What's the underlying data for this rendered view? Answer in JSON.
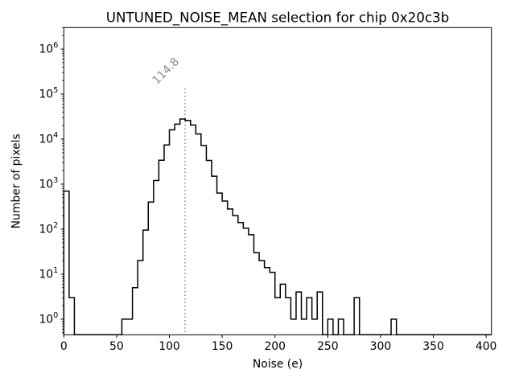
{
  "figure": {
    "title": "UNTUNED_NOISE_MEAN selection for chip 0x20c3b",
    "background_color": "#ffffff"
  },
  "chart_data": {
    "type": "bar",
    "subtype": "step-histogram",
    "title": "UNTUNED_NOISE_MEAN selection for chip 0x20c3b",
    "xlabel": "Noise (e)",
    "ylabel": "Number of pixels",
    "yscale": "log",
    "xlim": [
      0,
      405
    ],
    "ylim": [
      0.45,
      3000000
    ],
    "grid": false,
    "legend": null,
    "bin_start": 0,
    "bin_width": 5,
    "counts": [
      700,
      3,
      0,
      0,
      0,
      0,
      0,
      0,
      0,
      0,
      0,
      1,
      1,
      5,
      20,
      95,
      400,
      1200,
      3400,
      7400,
      16000,
      21500,
      28000,
      26000,
      20500,
      13000,
      7200,
      3350,
      1500,
      630,
      420,
      280,
      200,
      140,
      105,
      75,
      30,
      20,
      14,
      11,
      3,
      6,
      3,
      1,
      4,
      1,
      3,
      1,
      4,
      0,
      1,
      0,
      1,
      0,
      0,
      3,
      0,
      0,
      0,
      0,
      0,
      0,
      1,
      0,
      0,
      0,
      0,
      0,
      0,
      0,
      0,
      0,
      0,
      0,
      0,
      0,
      0,
      0,
      0,
      0,
      0
    ],
    "x_ticks": [
      0,
      50,
      100,
      150,
      200,
      250,
      300,
      350,
      400
    ],
    "y_tick_exponents": [
      0,
      1,
      2,
      3,
      4,
      5,
      6
    ],
    "line_color": "#000000",
    "vline": {
      "x": 114.8,
      "label": "114.8",
      "style": "dotted",
      "color": "#888888"
    }
  }
}
